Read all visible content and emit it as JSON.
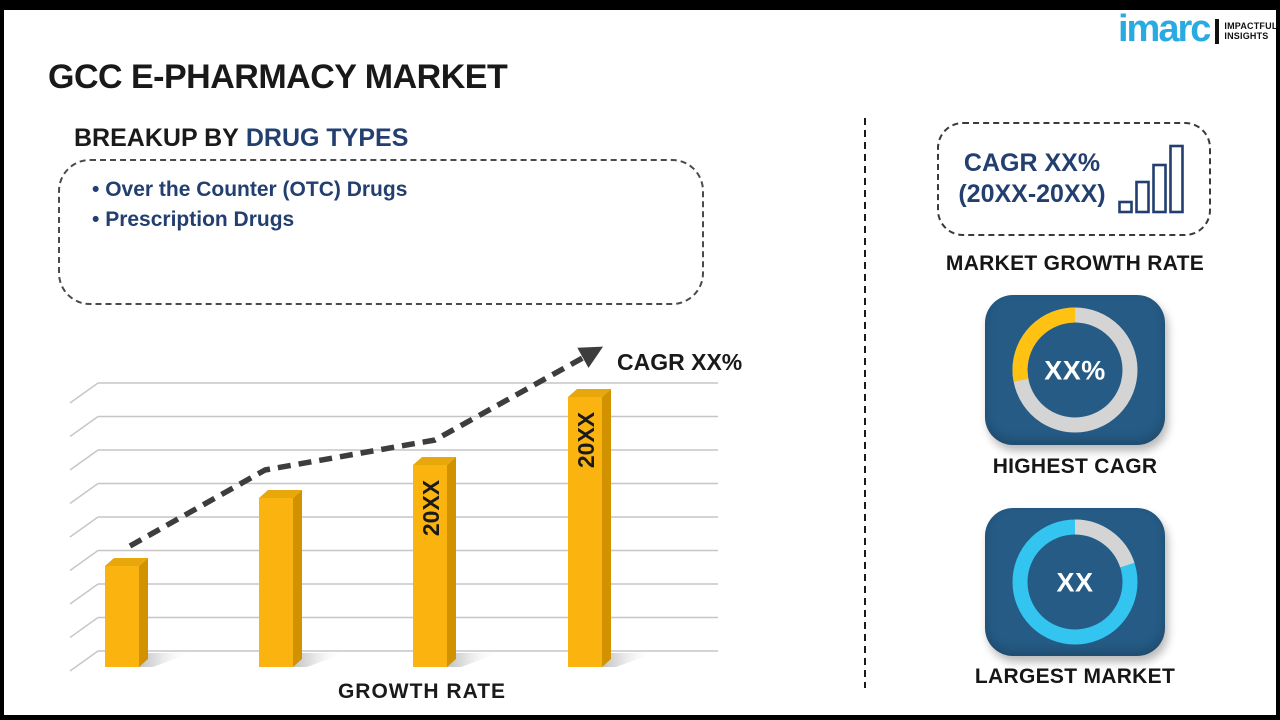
{
  "page": {
    "title": "GCC E-PHARMACY MARKET"
  },
  "logo": {
    "brand": "imarc",
    "tagline_line1": "IMPACTFUL",
    "tagline_line2": "INSIGHTS",
    "brand_color": "#29ABE2"
  },
  "breakup": {
    "heading_prefix": "BREAKUP BY",
    "heading_highlight": "DRUG TYPES",
    "items": [
      "Over the Counter (OTC) Drugs",
      "Prescription Drugs"
    ]
  },
  "chart_data": {
    "type": "bar",
    "title": "",
    "categories": [
      "",
      "",
      "20XX",
      "20XX"
    ],
    "values": [
      101,
      169,
      202,
      270
    ],
    "value_unit": "relative bar height in px (placeholder infographic, no numeric axis)",
    "xlabel": "GROWTH RATE",
    "ylabel": "",
    "trend_label": "CAGR XX%",
    "trend_points_x": [
      85,
      220,
      390,
      552
    ],
    "grid": "horizontal gridlines with 3D wall ticks, no tick labels",
    "legend": "none",
    "colors": {
      "bar_front": "#FBB40F",
      "bar_side": "#D29200",
      "bar_top": "#E8A70A",
      "trend": "#3D3D3D",
      "grid": "#C6C6C6",
      "label": "#1A1A1A"
    }
  },
  "sidebar": {
    "growth_box": {
      "line1": "CAGR XX%",
      "line2": "(20XX-20XX)",
      "icon": "growing-bars-icon"
    },
    "growth_caption": "MARKET GROWTH RATE",
    "highest_cagr": {
      "value": "XX%",
      "caption": "HIGHEST CAGR",
      "highlight_percent": 28,
      "highlight_color": "#FFC213",
      "track_color": "#D4D4D4",
      "card_color": "#255B85"
    },
    "largest_market": {
      "value": "XX",
      "caption": "LARGEST MARKET",
      "highlight_percent": 80,
      "highlight_color": "#33C5F0",
      "track_color": "#D4D4D4",
      "card_color": "#255B85"
    }
  },
  "colors": {
    "navy": "#223F70",
    "black": "#1A1A1A",
    "imarc_cyan": "#29ABE2"
  }
}
